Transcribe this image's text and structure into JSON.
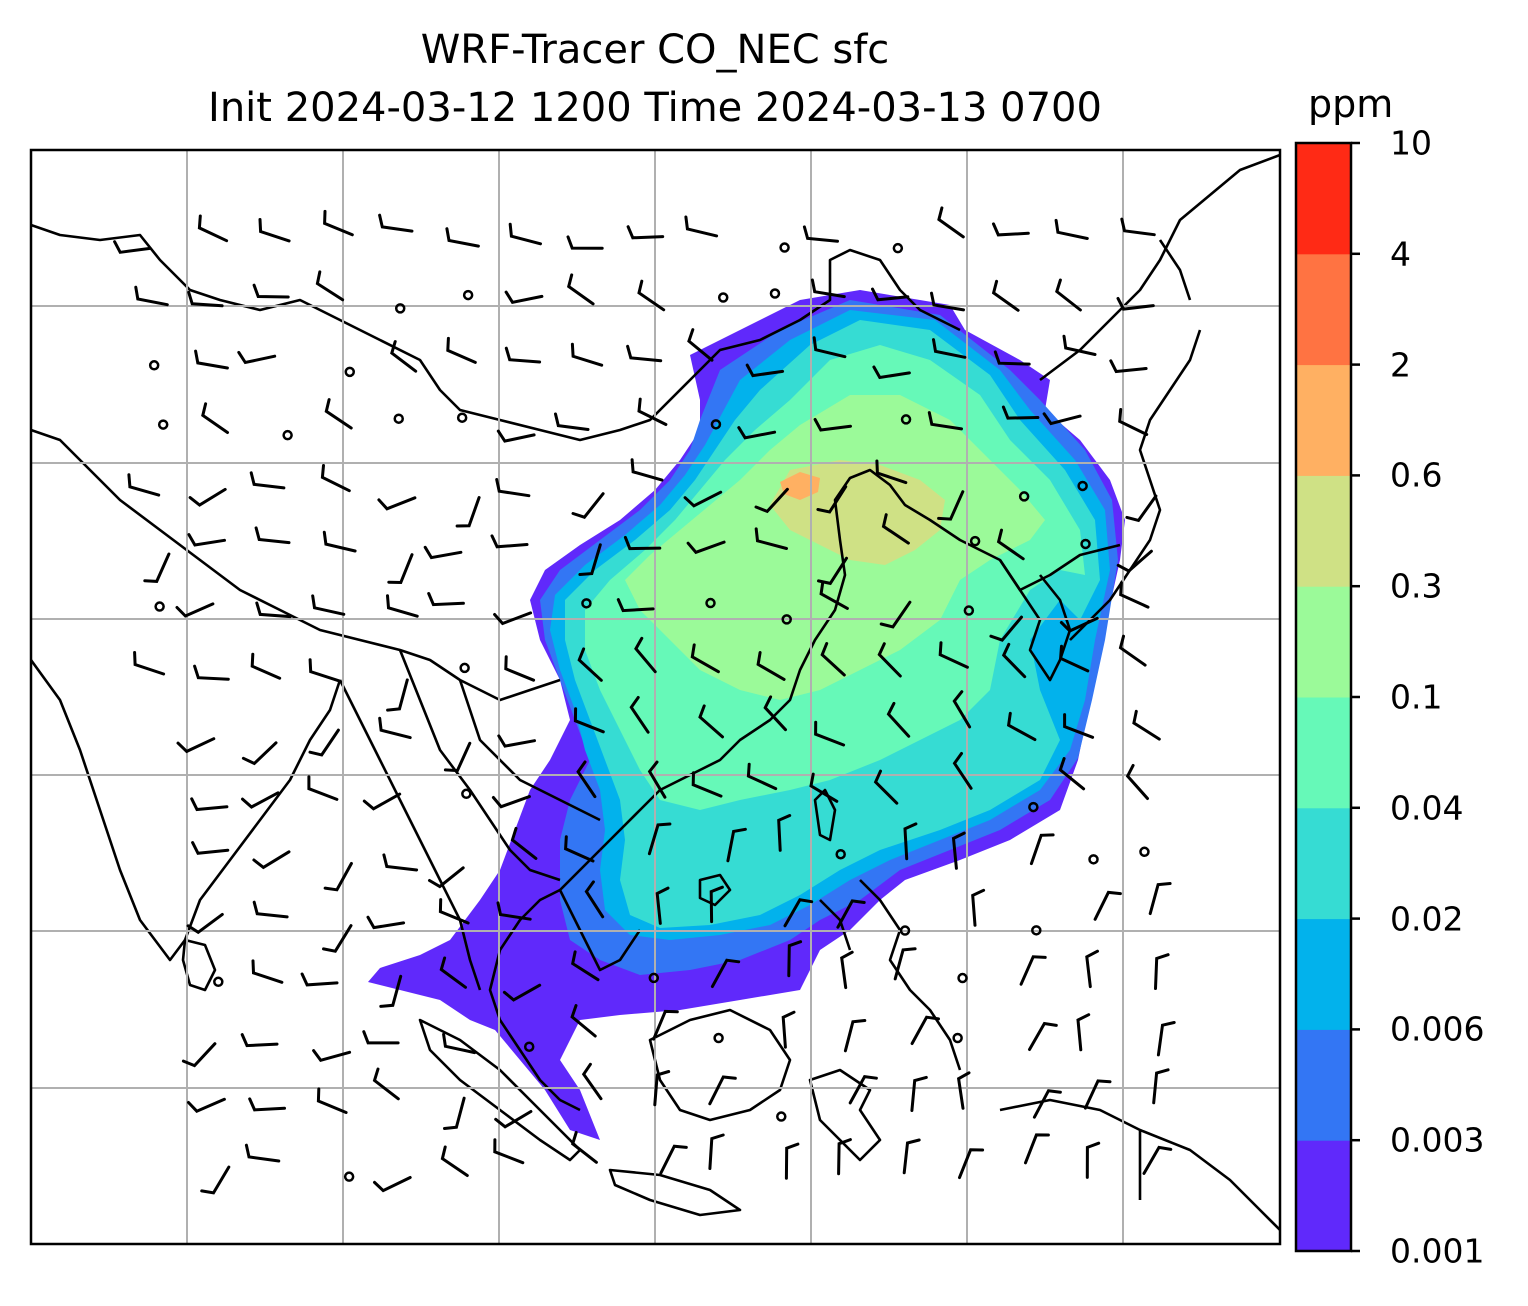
{
  "title_line1": "WRF-Tracer CO_NEC sfc",
  "title_line2": "Init 2024-03-12 1200 Time 2024-03-13 0700",
  "colorbar": {
    "unit": "ppm",
    "levels": [
      "0.001",
      "0.003",
      "0.006",
      "0.02",
      "0.04",
      "0.1",
      "0.3",
      "0.6",
      "2",
      "4",
      "10"
    ],
    "colors": [
      "#6029fb",
      "#3376f4",
      "#02b2ec",
      "#36dcd3",
      "#66f9b8",
      "#9bfa99",
      "#cfe185",
      "#ffb062",
      "#ff7342",
      "#ff2a15"
    ]
  },
  "map": {
    "field": "CO_NEC surface tracer concentration",
    "overlays": [
      "coastlines",
      "country borders",
      "lat-lon gridlines",
      "wind barbs"
    ]
  }
}
